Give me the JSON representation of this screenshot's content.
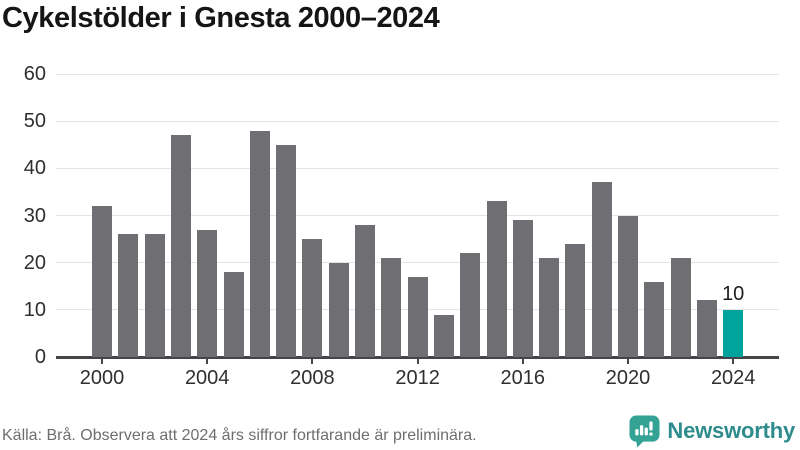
{
  "title": "Cykelstölder i Gnesta 2000–2024",
  "footer": {
    "source": "Källa: Brå. Observera att 2024 års siffror fortfarande är preliminära.",
    "brand": "Newsworthy",
    "brand_icon": "bar-chart-speech-bubble-icon"
  },
  "colors": {
    "bar": "#6e6e73",
    "highlight": "#00a49c",
    "grid": "#e4e4e4",
    "axis": "#454549",
    "logo_icon": "#35a296",
    "logo_text": "#2e8c8c"
  },
  "chart_data": {
    "type": "bar",
    "title": "Cykelstölder i Gnesta 2000–2024",
    "categories": [
      2000,
      2001,
      2002,
      2003,
      2004,
      2005,
      2006,
      2007,
      2008,
      2009,
      2010,
      2011,
      2012,
      2013,
      2014,
      2015,
      2016,
      2017,
      2018,
      2019,
      2020,
      2021,
      2022,
      2023,
      2024
    ],
    "values": [
      32,
      26,
      26,
      47,
      27,
      18,
      48,
      45,
      25,
      20,
      28,
      21,
      17,
      9,
      22,
      33,
      29,
      21,
      24,
      37,
      30,
      16,
      21,
      12,
      10
    ],
    "highlight_year": 2024,
    "annotations": [
      {
        "year": 2024,
        "text": "10"
      }
    ],
    "yticks": [
      0,
      10,
      20,
      30,
      40,
      50,
      60
    ],
    "xticks": [
      2000,
      2004,
      2008,
      2012,
      2016,
      2020,
      2024
    ],
    "ylim": [
      0,
      60
    ],
    "xlabel": "",
    "ylabel": "",
    "grid": true,
    "legend_position": "none"
  }
}
